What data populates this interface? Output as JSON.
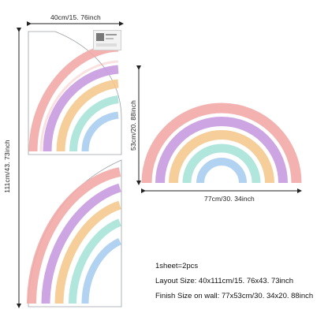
{
  "dimensions": {
    "top_width": "40cm/15. 76inch",
    "left_height": "111cm/43. 73inch",
    "right_height": "53cm/20. 88inch",
    "right_width": "77cm/30. 34inch"
  },
  "info": {
    "sheets": "1sheet=2pcs",
    "layout_size": "Layout Size: 40x111cm/15. 76x43. 73inch",
    "finish_size": "Finish Size on wall: 77x53cm/30. 34x20. 88inch"
  },
  "colors": {
    "pink": "#f2a9a6",
    "purple": "#c89be0",
    "orange": "#f5c98e",
    "mint": "#a9e3d9",
    "blue": "#a9cdef",
    "sheet_outline": "#9aa0a6"
  },
  "icons": [
    "product-thumbnail-icon",
    "arrow-icon"
  ]
}
